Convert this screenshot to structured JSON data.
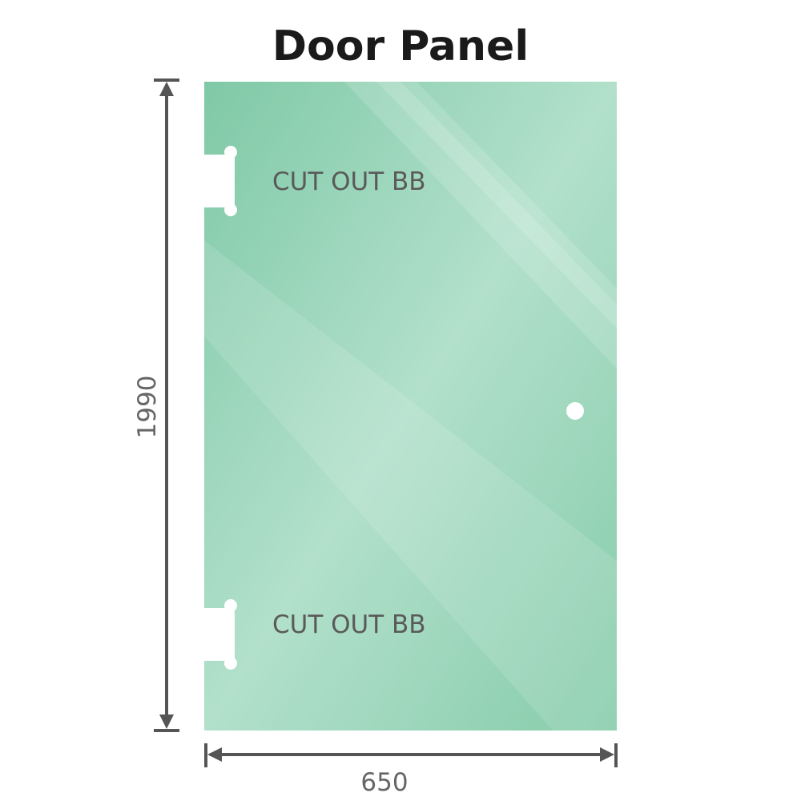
{
  "title": "Door Panel",
  "panel": {
    "color": "#86ccaa",
    "cutouts": [
      {
        "label": "CUT OUT BB"
      },
      {
        "label": "CUT OUT BB"
      }
    ]
  },
  "dimensions": {
    "height": "1990",
    "width": "650",
    "color": "#555555"
  }
}
